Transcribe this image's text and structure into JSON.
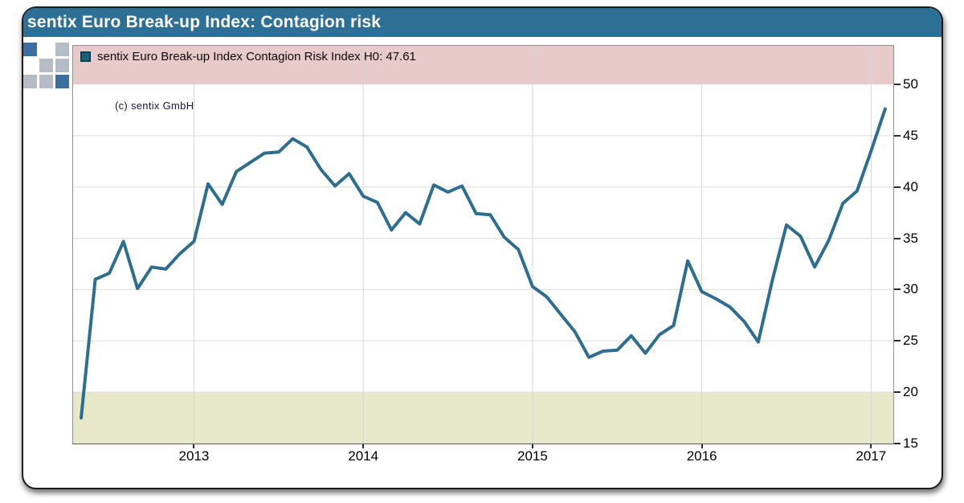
{
  "window": {
    "title": "sentix Euro Break-up Index: Contagion risk"
  },
  "legend": {
    "marker": "filled-square",
    "label": "sentix Euro Break-up Index Contagion Risk Index H0: 47.61"
  },
  "copyright": "(c) sentix GmbH",
  "colors": {
    "titlebar": "#2e7095",
    "line": "#2d6e90",
    "legend_marker_fill": "#1e5f7d",
    "legend_marker_border": "#123c52",
    "band_high": "#e9caca",
    "band_low": "#e7e7c9",
    "grid_vertical": "#d4d4d4",
    "grid_horizontal": "#dcdcdc",
    "logo_blue": "#3a6f9f",
    "logo_gray": "#b4bcc6"
  },
  "chart_data": {
    "type": "line",
    "title": "sentix Euro Break-up Index: Contagion risk",
    "xlabel": "",
    "ylabel": "",
    "ylim": [
      15,
      53.8
    ],
    "yticks": [
      50,
      45,
      40,
      35,
      30,
      25,
      20,
      15
    ],
    "xticks": [
      "2013",
      "2014",
      "2015",
      "2016",
      "2017"
    ],
    "grid": true,
    "legend_position": "top-left",
    "bands": [
      {
        "from": 50,
        "to": 53.8,
        "color": "#e9caca",
        "meaning": "zone above 50"
      },
      {
        "from": 15,
        "to": 20,
        "color": "#e7e7c9",
        "meaning": "zone below 20"
      }
    ],
    "series": [
      {
        "name": "sentix Euro Break-up Index Contagion Risk Index",
        "current_value_label": "H0: 47.61",
        "current_value": 47.61,
        "x": [
          "2012-05",
          "2012-06",
          "2012-07",
          "2012-08",
          "2012-09",
          "2012-10",
          "2012-11",
          "2012-12",
          "2013-01",
          "2013-02",
          "2013-03",
          "2013-04",
          "2013-05",
          "2013-06",
          "2013-07",
          "2013-08",
          "2013-09",
          "2013-10",
          "2013-11",
          "2013-12",
          "2014-01",
          "2014-02",
          "2014-03",
          "2014-04",
          "2014-05",
          "2014-06",
          "2014-07",
          "2014-08",
          "2014-09",
          "2014-10",
          "2014-11",
          "2014-12",
          "2015-01",
          "2015-02",
          "2015-03",
          "2015-04",
          "2015-05",
          "2015-06",
          "2015-07",
          "2015-08",
          "2015-09",
          "2015-10",
          "2015-11",
          "2015-12",
          "2016-01",
          "2016-02",
          "2016-03",
          "2016-04",
          "2016-05",
          "2016-06",
          "2016-07",
          "2016-08",
          "2016-09",
          "2016-10",
          "2016-11",
          "2016-12",
          "2017-01",
          "2017-02"
        ],
        "values": [
          17.5,
          31.0,
          31.6,
          34.7,
          30.1,
          32.2,
          32.0,
          33.5,
          34.7,
          40.3,
          38.3,
          41.5,
          42.4,
          43.3,
          43.4,
          44.7,
          43.9,
          41.7,
          40.1,
          41.3,
          39.1,
          38.5,
          35.8,
          37.5,
          36.4,
          40.2,
          39.5,
          40.1,
          37.4,
          37.3,
          35.1,
          33.9,
          30.3,
          29.3,
          27.6,
          25.9,
          23.4,
          24.0,
          24.1,
          25.5,
          23.8,
          25.6,
          26.5,
          32.8,
          29.8,
          29.1,
          28.3,
          26.9,
          24.9,
          30.9,
          36.3,
          35.2,
          32.2,
          34.8,
          38.4,
          39.6,
          43.5,
          47.61
        ]
      }
    ]
  }
}
